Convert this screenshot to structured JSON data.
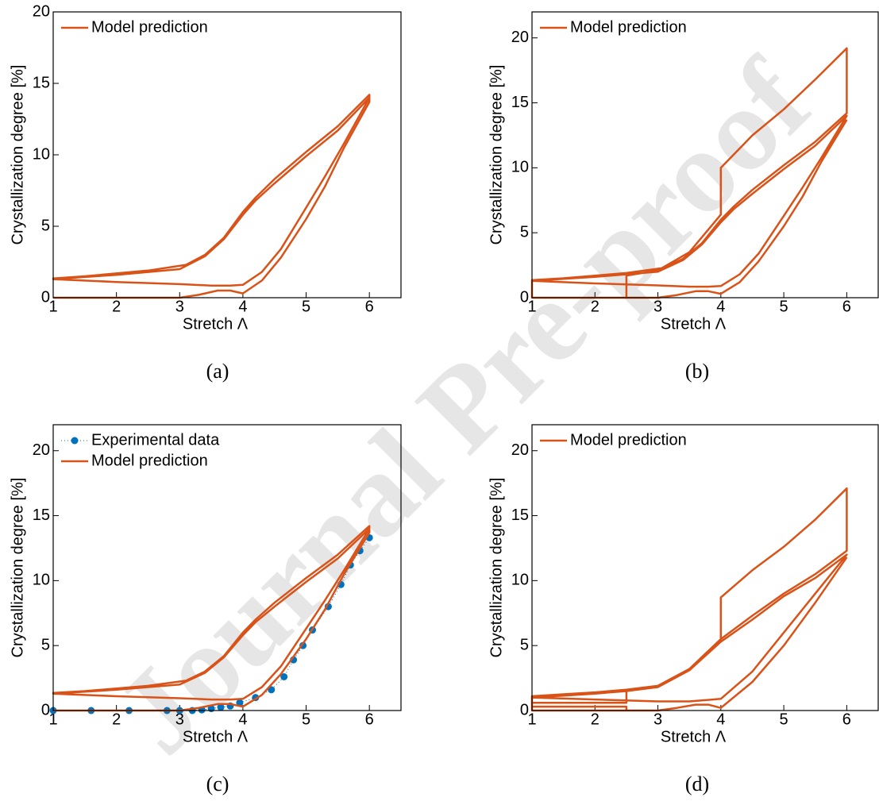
{
  "watermark": "Journal Pre-proof",
  "chart_data": [
    {
      "type": "line",
      "caption": "(a)",
      "xlabel": "Stretch Λ",
      "ylabel": "Crystallization degree [%]",
      "xlim": [
        1,
        6.5
      ],
      "ylim": [
        0,
        20
      ],
      "xticks": [
        1,
        2,
        3,
        4,
        5,
        6
      ],
      "yticks": [
        0,
        5,
        10,
        15,
        20
      ],
      "legend": "upper left",
      "series": [
        {
          "name": "Model prediction",
          "color": "#d95319",
          "x": [
            1,
            1.5,
            2,
            2.5,
            3,
            3.3,
            3.6,
            3.8,
            4,
            4.3,
            4.6,
            5,
            5.3,
            5.6,
            6,
            6,
            5.5,
            5,
            4.5,
            4.2,
            4,
            3.7,
            3.4,
            3.1,
            2.5,
            2,
            1.5,
            1,
            1,
            2,
            3,
            3.5,
            3.8,
            4,
            4.3,
            4.6,
            5,
            5.3,
            5.6,
            6,
            6,
            5.5,
            5,
            4.5,
            4.2,
            4,
            3.7,
            3.4,
            3,
            2.5,
            2,
            1.5,
            1
          ],
          "y": [
            0,
            0,
            0,
            0,
            0,
            0.2,
            0.5,
            0.5,
            0.3,
            1.2,
            2.8,
            5.5,
            7.8,
            10.5,
            13.7,
            14.2,
            12,
            10.2,
            8.3,
            7,
            6,
            4.2,
            3,
            2.3,
            1.9,
            1.7,
            1.5,
            1.35,
            1.3,
            1.1,
            0.95,
            0.85,
            0.85,
            0.9,
            1.8,
            3.4,
            6.3,
            8.5,
            10.8,
            14,
            14,
            11.7,
            9.9,
            8,
            6.8,
            5.8,
            4.1,
            2.9,
            2,
            1.8,
            1.6,
            1.45,
            1.3
          ]
        }
      ]
    },
    {
      "type": "line",
      "caption": "(b)",
      "xlabel": "Stretch Λ",
      "ylabel": "Crystallization degree [%]",
      "xlim": [
        1,
        6.5
      ],
      "ylim": [
        0,
        22
      ],
      "xticks": [
        1,
        2,
        3,
        4,
        5,
        6
      ],
      "yticks": [
        0,
        5,
        10,
        15,
        20
      ],
      "legend": "upper left",
      "series": [
        {
          "name": "Model prediction",
          "color": "#d95319",
          "x": [
            1,
            2.5,
            2.5,
            3,
            3.5,
            4,
            4,
            4.5,
            5,
            5.5,
            6,
            6,
            5.5,
            5,
            4.5,
            4.2,
            4,
            3.7,
            3.4,
            3.1,
            2.5,
            2,
            1.5,
            1,
            1,
            2,
            3,
            3.5,
            3.8,
            4,
            4.3,
            4.6,
            5,
            5.3,
            5.6,
            6,
            6,
            5.5,
            5,
            4.5,
            4.2,
            4,
            3.7,
            3.4,
            3,
            2.5,
            2,
            1.5,
            1,
            1,
            2,
            3,
            3.3,
            3.6,
            3.8,
            4,
            4.3,
            4.6,
            5,
            5.3,
            5.6,
            6
          ],
          "y": [
            0,
            0,
            1.7,
            2.1,
            3.5,
            6.4,
            10,
            12.5,
            14.5,
            16.8,
            19.2,
            14.2,
            12,
            10.2,
            8.3,
            7,
            6,
            4.2,
            3,
            2.3,
            1.9,
            1.7,
            1.5,
            1.35,
            1.3,
            1.1,
            0.95,
            0.85,
            0.85,
            0.9,
            1.8,
            3.4,
            6.3,
            8.5,
            10.8,
            14,
            14,
            11.7,
            9.9,
            8,
            6.8,
            5.8,
            4.1,
            2.9,
            2,
            1.8,
            1.6,
            1.45,
            1.3,
            0,
            0,
            0,
            0.2,
            0.5,
            0.5,
            0.3,
            1.2,
            2.8,
            5.5,
            7.8,
            10.5,
            13.7
          ]
        }
      ]
    },
    {
      "type": "line",
      "caption": "(c)",
      "xlabel": "Stretch Λ",
      "ylabel": "Crystallization degree [%]",
      "xlim": [
        1,
        6.5
      ],
      "ylim": [
        0,
        22
      ],
      "xticks": [
        1,
        2,
        3,
        4,
        5,
        6
      ],
      "yticks": [
        0,
        5,
        10,
        15,
        20
      ],
      "legend": "upper left",
      "series": [
        {
          "name": "Experimental data",
          "color": "#0072bd",
          "marker": true,
          "x": [
            1,
            1.6,
            2.2,
            2.8,
            3,
            3.2,
            3.35,
            3.5,
            3.65,
            3.8,
            3.95,
            4.2,
            4.45,
            4.65,
            4.8,
            4.95,
            5.1,
            5.35,
            5.55,
            5.7,
            5.85,
            6
          ],
          "y": [
            0,
            0,
            0,
            0,
            0,
            0,
            0.05,
            0.15,
            0.25,
            0.35,
            0.6,
            1,
            1.6,
            2.6,
            3.9,
            5,
            6.2,
            8,
            9.7,
            11.2,
            12.3,
            13.3
          ]
        },
        {
          "name": "Model prediction",
          "color": "#d95319",
          "x": [
            1,
            1.5,
            2,
            2.5,
            3,
            3.3,
            3.6,
            3.8,
            4,
            4.3,
            4.6,
            5,
            5.3,
            5.6,
            6,
            6,
            5.5,
            5,
            4.5,
            4.2,
            4,
            3.7,
            3.4,
            3.1,
            2.5,
            2,
            1.5,
            1,
            1,
            2,
            3,
            3.5,
            3.8,
            4,
            4.3,
            4.6,
            5,
            5.3,
            5.6,
            6,
            6,
            5.5,
            5,
            4.5,
            4.2,
            4,
            3.7,
            3.4,
            3,
            2.5,
            2,
            1.5,
            1
          ],
          "y": [
            0,
            0,
            0,
            0,
            0,
            0.2,
            0.5,
            0.5,
            0.3,
            1.2,
            2.8,
            5.5,
            7.8,
            10.5,
            13.7,
            14.2,
            12,
            10.2,
            8.3,
            7,
            6,
            4.2,
            3,
            2.3,
            1.9,
            1.7,
            1.5,
            1.35,
            1.3,
            1.1,
            0.95,
            0.85,
            0.85,
            0.9,
            1.8,
            3.4,
            6.3,
            8.5,
            10.8,
            14,
            14,
            11.7,
            9.9,
            8,
            6.8,
            5.8,
            4.1,
            2.9,
            2,
            1.8,
            1.6,
            1.45,
            1.3
          ]
        }
      ]
    },
    {
      "type": "line",
      "caption": "(d)",
      "xlabel": "Stretch Λ",
      "ylabel": "Crystallization degree [%]",
      "xlim": [
        1,
        6.5
      ],
      "ylim": [
        0,
        22
      ],
      "xticks": [
        1,
        2,
        3,
        4,
        5,
        6
      ],
      "yticks": [
        0,
        5,
        10,
        15,
        20
      ],
      "legend": "upper left",
      "series": [
        {
          "name": "Model prediction",
          "color": "#d95319",
          "x": [
            1,
            2.5,
            2.5,
            1,
            1,
            2.5,
            2.5,
            3,
            3.5,
            4,
            4,
            4.5,
            5,
            5.5,
            6,
            6,
            5.5,
            5,
            4.5,
            4,
            3.5,
            3,
            2.5,
            2,
            1.5,
            1,
            1,
            2,
            3,
            3.5,
            4,
            4.5,
            5,
            5.5,
            6,
            6,
            5.5,
            5,
            4.5,
            4,
            3.5,
            3,
            2.5,
            2,
            1.5,
            1,
            1,
            2,
            3,
            3.3,
            3.6,
            3.8,
            4,
            4.5,
            5,
            5.5,
            6
          ],
          "y": [
            0,
            0,
            0.3,
            0.3,
            0.6,
            0.6,
            1.6,
            1.9,
            3.2,
            5.4,
            8.7,
            10.8,
            12.6,
            14.7,
            17.1,
            12.3,
            10.5,
            9,
            7.3,
            5.5,
            3.2,
            1.9,
            1.6,
            1.4,
            1.25,
            1.1,
            1,
            0.85,
            0.7,
            0.7,
            0.9,
            3,
            6,
            9,
            12,
            12,
            10.2,
            8.8,
            7,
            5.3,
            3.1,
            1.8,
            1.5,
            1.3,
            1.15,
            1,
            0,
            0,
            0,
            0.2,
            0.45,
            0.45,
            0.2,
            2.2,
            5,
            8.3,
            11.8
          ]
        }
      ]
    }
  ]
}
